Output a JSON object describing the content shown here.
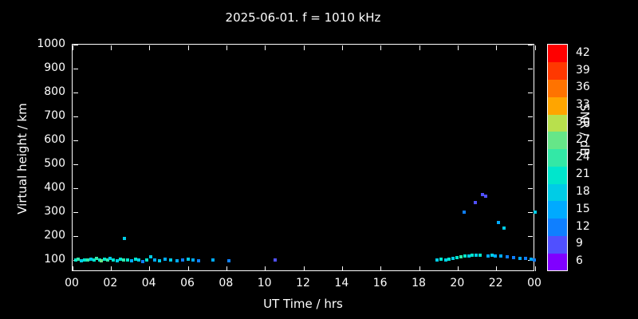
{
  "chart_data": {
    "type": "scatter",
    "title": "2025-06-01. f = 1010 kHz",
    "xlabel": "UT Time / hrs",
    "ylabel": "Virtual height / km",
    "xlim": [
      0,
      24
    ],
    "ylim": [
      50,
      1000
    ],
    "grid": false,
    "background_color": "#000000",
    "axis_color": "#ffffff",
    "x_tick_values": [
      0,
      2,
      4,
      6,
      8,
      10,
      12,
      14,
      16,
      18,
      20,
      22,
      24
    ],
    "x_tick_labels": [
      "00",
      "02",
      "04",
      "06",
      "08",
      "10",
      "12",
      "14",
      "16",
      "18",
      "20",
      "22",
      "00"
    ],
    "y_tick_values": [
      100,
      200,
      300,
      400,
      500,
      600,
      700,
      800,
      900,
      1000
    ],
    "y_tick_labels": [
      "100",
      "200",
      "300",
      "400",
      "500",
      "600",
      "700",
      "800",
      "900",
      "1000"
    ],
    "colorbar": {
      "label": "SNR / dB",
      "tick_values": [
        6,
        9,
        12,
        15,
        18,
        21,
        24,
        27,
        30,
        33,
        36,
        39,
        42
      ],
      "tick_labels": [
        "6",
        "9",
        "12",
        "15",
        "18",
        "21",
        "24",
        "27",
        "30",
        "33",
        "36",
        "39",
        "42"
      ],
      "colors": [
        "#8000ff",
        "#5050ff",
        "#0f7fff",
        "#00aaff",
        "#00cce6",
        "#00e6cc",
        "#33e8a6",
        "#66e688",
        "#b8e04d",
        "#ffa500",
        "#ff7300",
        "#ff3800",
        "#ff0000"
      ],
      "position": "right"
    },
    "points": [
      {
        "x": 0.15,
        "y": 100,
        "snr": 21
      },
      {
        "x": 0.3,
        "y": 104,
        "snr": 24
      },
      {
        "x": 0.45,
        "y": 98,
        "snr": 18
      },
      {
        "x": 0.6,
        "y": 101,
        "snr": 21
      },
      {
        "x": 0.8,
        "y": 99,
        "snr": 24
      },
      {
        "x": 0.95,
        "y": 104,
        "snr": 18
      },
      {
        "x": 1.1,
        "y": 100,
        "snr": 21
      },
      {
        "x": 1.25,
        "y": 106,
        "snr": 24
      },
      {
        "x": 1.4,
        "y": 100,
        "snr": 21
      },
      {
        "x": 1.5,
        "y": 96,
        "snr": 27
      },
      {
        "x": 1.65,
        "y": 102,
        "snr": 21
      },
      {
        "x": 1.8,
        "y": 99,
        "snr": 24
      },
      {
        "x": 1.95,
        "y": 108,
        "snr": 18
      },
      {
        "x": 2.1,
        "y": 100,
        "snr": 21
      },
      {
        "x": 2.3,
        "y": 97,
        "snr": 18
      },
      {
        "x": 2.5,
        "y": 104,
        "snr": 21
      },
      {
        "x": 2.65,
        "y": 100,
        "snr": 24
      },
      {
        "x": 2.7,
        "y": 190,
        "snr": 18
      },
      {
        "x": 2.85,
        "y": 99,
        "snr": 21
      },
      {
        "x": 3.05,
        "y": 97,
        "snr": 15
      },
      {
        "x": 3.25,
        "y": 103,
        "snr": 21
      },
      {
        "x": 3.45,
        "y": 100,
        "snr": 18
      },
      {
        "x": 3.65,
        "y": 95,
        "snr": 12
      },
      {
        "x": 3.85,
        "y": 100,
        "snr": 21
      },
      {
        "x": 4.05,
        "y": 114,
        "snr": 18
      },
      {
        "x": 4.25,
        "y": 100,
        "snr": 15
      },
      {
        "x": 4.5,
        "y": 98,
        "snr": 18
      },
      {
        "x": 4.8,
        "y": 103,
        "snr": 15
      },
      {
        "x": 5.1,
        "y": 100,
        "snr": 18
      },
      {
        "x": 5.4,
        "y": 97,
        "snr": 15
      },
      {
        "x": 5.7,
        "y": 100,
        "snr": 12
      },
      {
        "x": 6.0,
        "y": 103,
        "snr": 18
      },
      {
        "x": 6.25,
        "y": 100,
        "snr": 15
      },
      {
        "x": 6.55,
        "y": 98,
        "snr": 12
      },
      {
        "x": 7.3,
        "y": 100,
        "snr": 15
      },
      {
        "x": 8.1,
        "y": 98,
        "snr": 12
      },
      {
        "x": 10.5,
        "y": 100,
        "snr": 9
      },
      {
        "x": 18.9,
        "y": 100,
        "snr": 18
      },
      {
        "x": 19.1,
        "y": 103,
        "snr": 21
      },
      {
        "x": 19.35,
        "y": 101,
        "snr": 18
      },
      {
        "x": 19.55,
        "y": 105,
        "snr": 21
      },
      {
        "x": 19.75,
        "y": 108,
        "snr": 18
      },
      {
        "x": 19.95,
        "y": 111,
        "snr": 21
      },
      {
        "x": 20.15,
        "y": 113,
        "snr": 24
      },
      {
        "x": 20.3,
        "y": 300,
        "snr": 12
      },
      {
        "x": 20.35,
        "y": 116,
        "snr": 21
      },
      {
        "x": 20.55,
        "y": 118,
        "snr": 18
      },
      {
        "x": 20.75,
        "y": 120,
        "snr": 21
      },
      {
        "x": 20.9,
        "y": 340,
        "snr": 9
      },
      {
        "x": 20.95,
        "y": 119,
        "snr": 18
      },
      {
        "x": 21.15,
        "y": 121,
        "snr": 21
      },
      {
        "x": 21.25,
        "y": 375,
        "snr": 9
      },
      {
        "x": 21.45,
        "y": 368,
        "snr": 9
      },
      {
        "x": 21.55,
        "y": 118,
        "snr": 15
      },
      {
        "x": 21.75,
        "y": 120,
        "snr": 18
      },
      {
        "x": 21.95,
        "y": 116,
        "snr": 15
      },
      {
        "x": 22.1,
        "y": 258,
        "snr": 15
      },
      {
        "x": 22.2,
        "y": 117,
        "snr": 15
      },
      {
        "x": 22.4,
        "y": 232,
        "snr": 18
      },
      {
        "x": 22.55,
        "y": 112,
        "snr": 12
      },
      {
        "x": 22.9,
        "y": 110,
        "snr": 12
      },
      {
        "x": 23.2,
        "y": 106,
        "snr": 15
      },
      {
        "x": 23.5,
        "y": 108,
        "snr": 12
      },
      {
        "x": 23.8,
        "y": 102,
        "snr": 15
      },
      {
        "x": 23.95,
        "y": 100,
        "snr": 12
      },
      {
        "x": 24.0,
        "y": 300,
        "snr": 18
      }
    ]
  }
}
